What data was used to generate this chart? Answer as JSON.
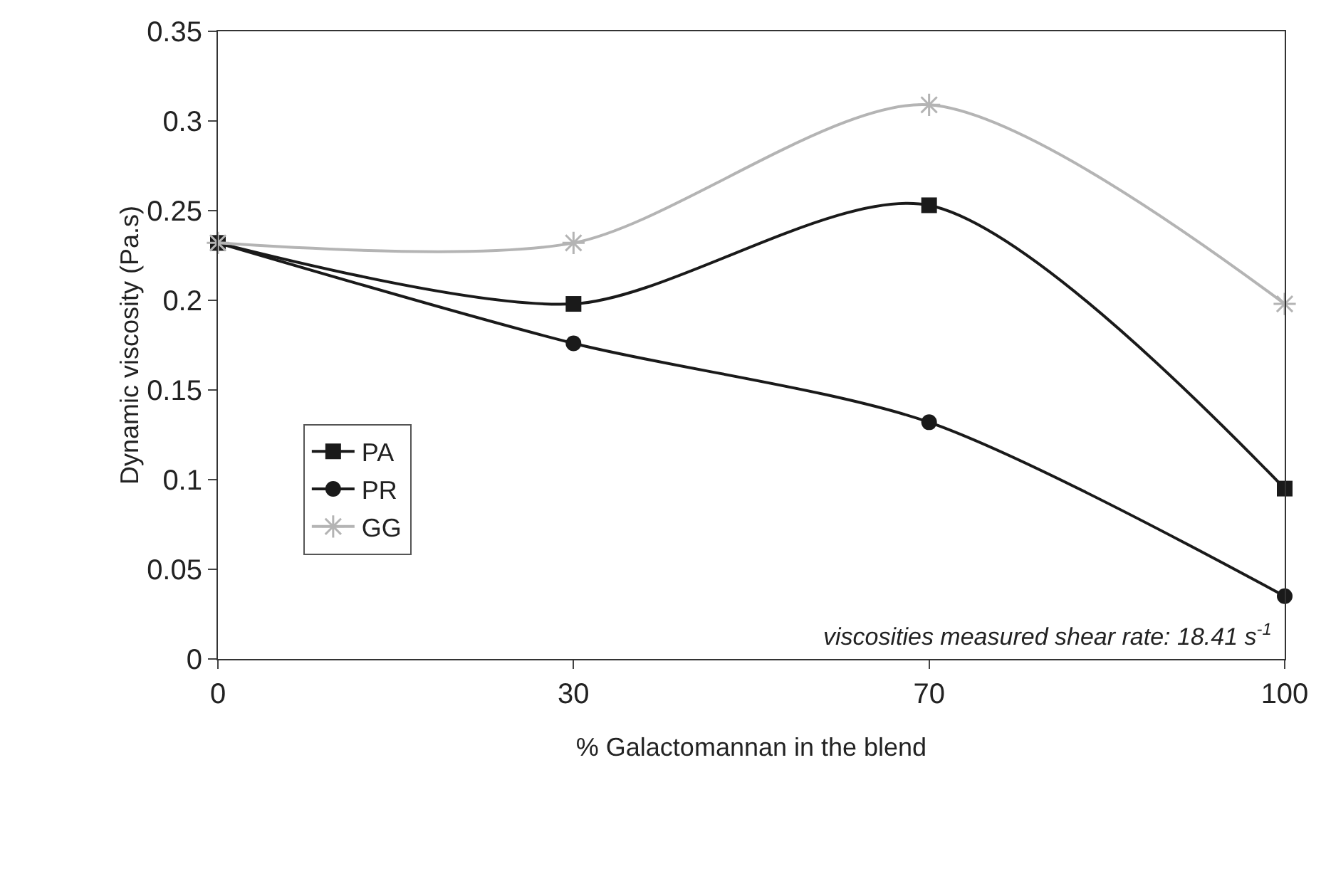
{
  "chart_data": {
    "type": "line",
    "xlabel": "% Galactomannan in the blend",
    "ylabel": "Dynamic viscosity (Pa.s)",
    "categories": [
      "0",
      "30",
      "70",
      "100"
    ],
    "series": [
      {
        "name": "PA",
        "color": "#1a1a1a",
        "marker": "square",
        "values": [
          0.232,
          0.198,
          0.253,
          0.095
        ]
      },
      {
        "name": "PR",
        "color": "#1a1a1a",
        "marker": "circle",
        "values": [
          0.232,
          0.176,
          0.132,
          0.035
        ]
      },
      {
        "name": "GG",
        "color": "#b4b4b4",
        "marker": "cross",
        "values": [
          0.232,
          0.232,
          0.309,
          0.198
        ]
      }
    ],
    "ylim": [
      0,
      0.35
    ],
    "yticks": [
      0,
      0.05,
      0.1,
      0.15,
      0.2,
      0.25,
      0.3,
      0.35
    ],
    "grid": false,
    "legend": "left",
    "annotations": [
      "viscosities measured shear rate: 18.41 s$^{-1}$"
    ]
  }
}
